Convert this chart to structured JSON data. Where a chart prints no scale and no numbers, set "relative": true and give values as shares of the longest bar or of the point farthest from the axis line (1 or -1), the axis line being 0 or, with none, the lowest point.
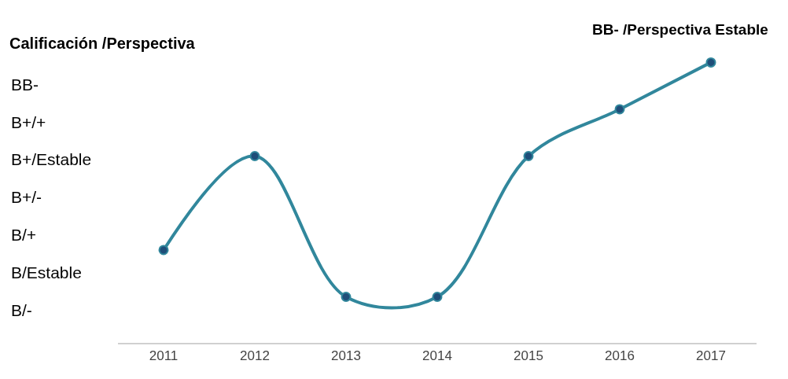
{
  "chart_data": {
    "type": "line",
    "title": "Calificación /Perspectiva",
    "relative": true,
    "categories": [
      "2011",
      "2012",
      "2013",
      "2014",
      "2015",
      "2016",
      "2017"
    ],
    "series": [
      {
        "color": "#31879c",
        "values": [
          0.331,
          0.666,
          0.164,
          0.164,
          0.666,
          0.833,
          1
        ]
      }
    ],
    "annotations": [
      {
        "text": "BB- /Perspectiva Estable",
        "x": "2017",
        "y": 1
      },
      "BB-",
      "B+/+",
      "B+/Estable",
      "B+/-",
      "B/+",
      "B/Estable",
      "B/-"
    ],
    "marker": "circle",
    "line_style": "solid",
    "legend": false
  }
}
